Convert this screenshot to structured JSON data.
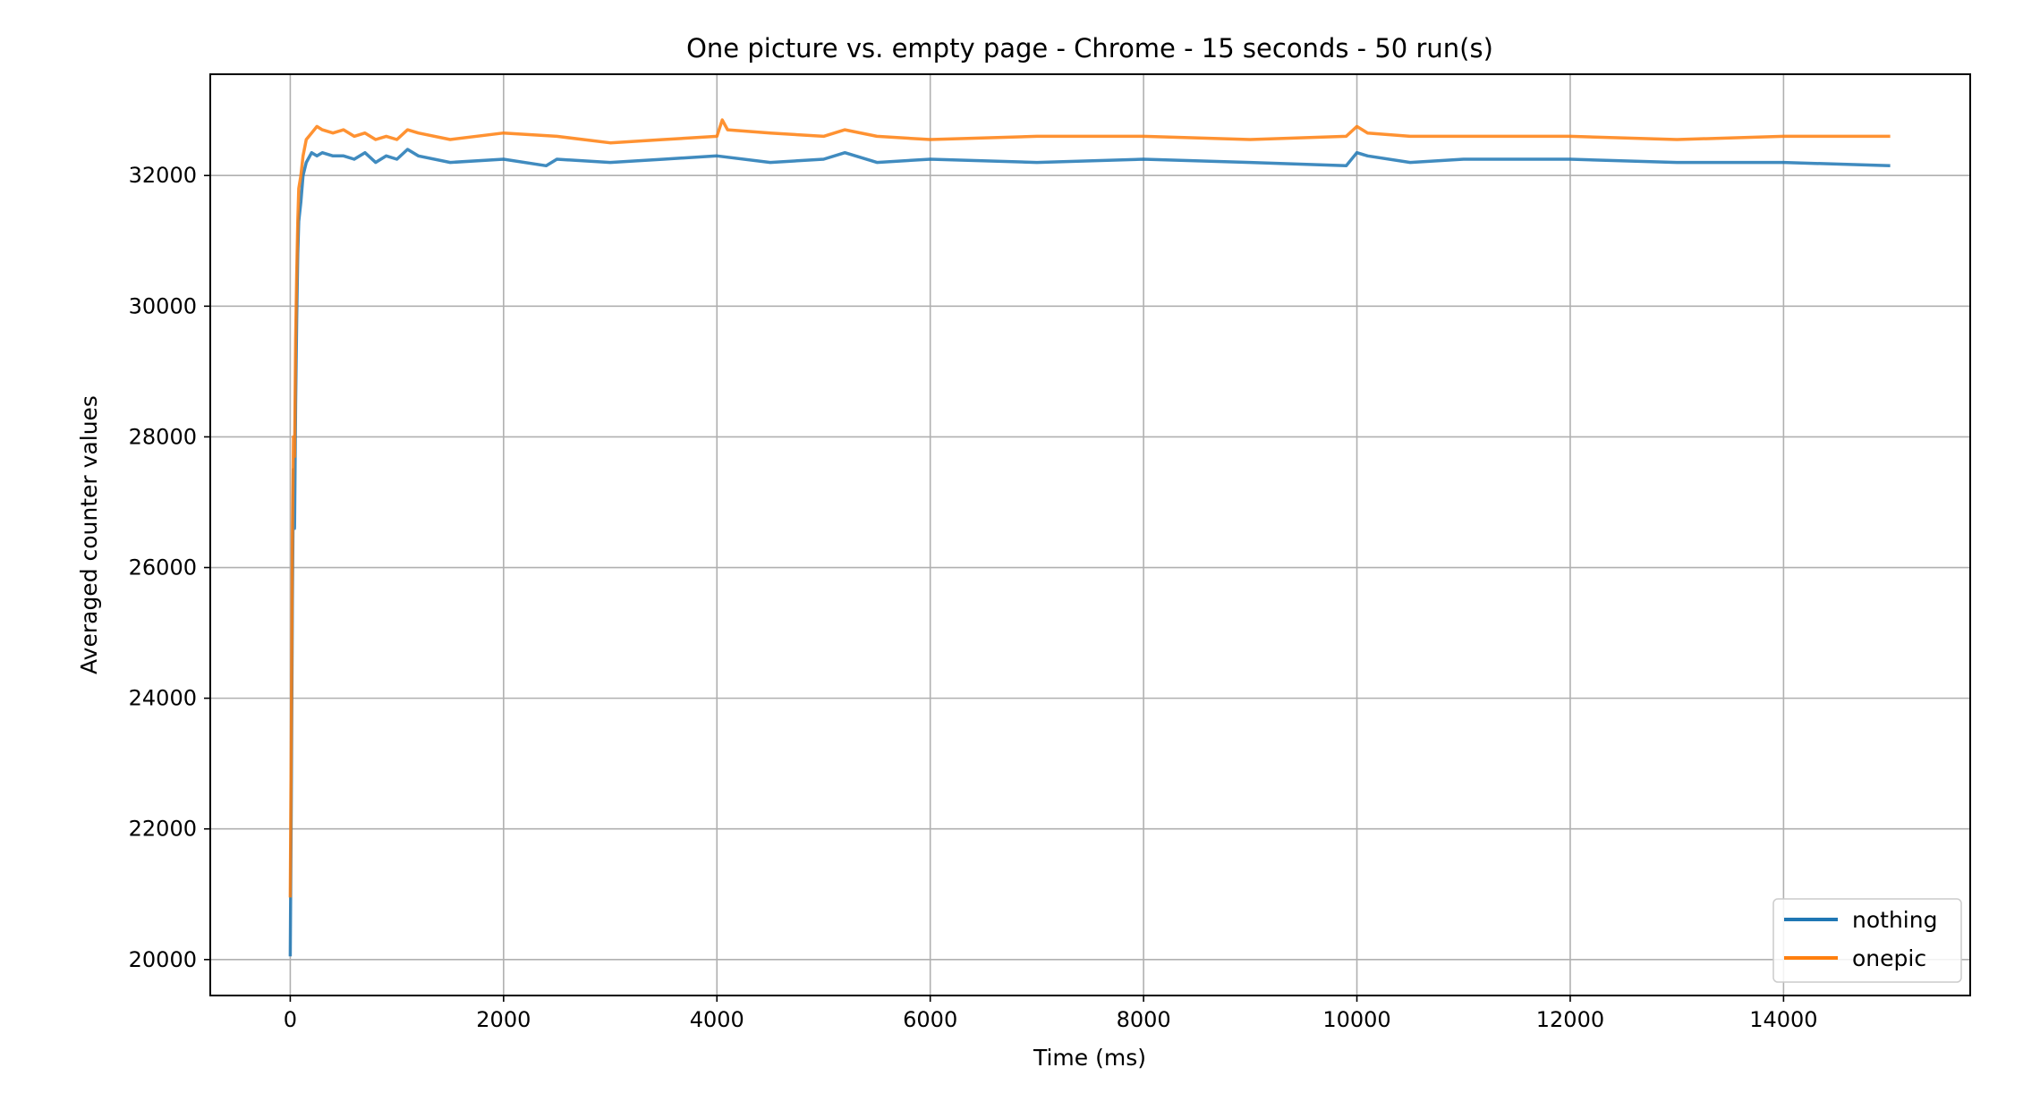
{
  "chart_data": {
    "type": "line",
    "title": "One picture vs. empty page - Chrome - 15 seconds - 50 run(s)",
    "xlabel": "Time (ms)",
    "ylabel": "Averaged counter values",
    "xlim": [
      -750,
      15750
    ],
    "ylim": [
      19450,
      33550
    ],
    "xticks": [
      0,
      2000,
      4000,
      6000,
      8000,
      10000,
      12000,
      14000
    ],
    "yticks": [
      20000,
      22000,
      24000,
      26000,
      28000,
      30000,
      32000
    ],
    "xtick_labels": [
      "0",
      "2000",
      "4000",
      "6000",
      "8000",
      "10000",
      "12000",
      "14000"
    ],
    "ytick_labels": [
      "20000",
      "22000",
      "24000",
      "26000",
      "28000",
      "30000",
      "32000"
    ],
    "grid": true,
    "legend_position": "bottom-right",
    "series": [
      {
        "name": "nothing",
        "color": "#1f77b4",
        "x": [
          0,
          10,
          20,
          30,
          40,
          50,
          60,
          70,
          80,
          100,
          120,
          150,
          200,
          250,
          300,
          400,
          500,
          600,
          700,
          800,
          900,
          1000,
          1100,
          1200,
          1500,
          2000,
          2400,
          2500,
          3000,
          3500,
          4000,
          4500,
          5000,
          5200,
          5500,
          6000,
          7000,
          8000,
          9000,
          9900,
          10000,
          10100,
          10500,
          11000,
          12000,
          13000,
          14000,
          15000
        ],
        "y": [
          20050,
          22500,
          25500,
          27500,
          26600,
          28500,
          29800,
          30800,
          31300,
          31600,
          32000,
          32200,
          32350,
          32300,
          32350,
          32300,
          32300,
          32250,
          32350,
          32200,
          32300,
          32250,
          32400,
          32300,
          32200,
          32250,
          32150,
          32250,
          32200,
          32250,
          32300,
          32200,
          32250,
          32350,
          32200,
          32250,
          32200,
          32250,
          32200,
          32150,
          32350,
          32300,
          32200,
          32250,
          32250,
          32200,
          32200,
          32150
        ]
      },
      {
        "name": "onepic",
        "color": "#ff7f0e",
        "x": [
          0,
          10,
          20,
          30,
          40,
          50,
          60,
          70,
          80,
          100,
          120,
          150,
          200,
          250,
          300,
          400,
          500,
          600,
          700,
          800,
          900,
          1000,
          1100,
          1200,
          1500,
          2000,
          2500,
          3000,
          3500,
          4000,
          4050,
          4100,
          4500,
          5000,
          5200,
          5500,
          6000,
          7000,
          8000,
          9000,
          9900,
          10000,
          10100,
          10500,
          11000,
          12000,
          13000,
          14000,
          15000
        ],
        "y": [
          20950,
          23500,
          26500,
          28000,
          27700,
          29500,
          30500,
          31300,
          31800,
          32000,
          32300,
          32550,
          32650,
          32750,
          32700,
          32650,
          32700,
          32600,
          32650,
          32550,
          32600,
          32550,
          32700,
          32650,
          32550,
          32650,
          32600,
          32500,
          32550,
          32600,
          32850,
          32700,
          32650,
          32600,
          32700,
          32600,
          32550,
          32600,
          32600,
          32550,
          32600,
          32750,
          32650,
          32600,
          32600,
          32600,
          32550,
          32600,
          32600
        ]
      }
    ]
  }
}
